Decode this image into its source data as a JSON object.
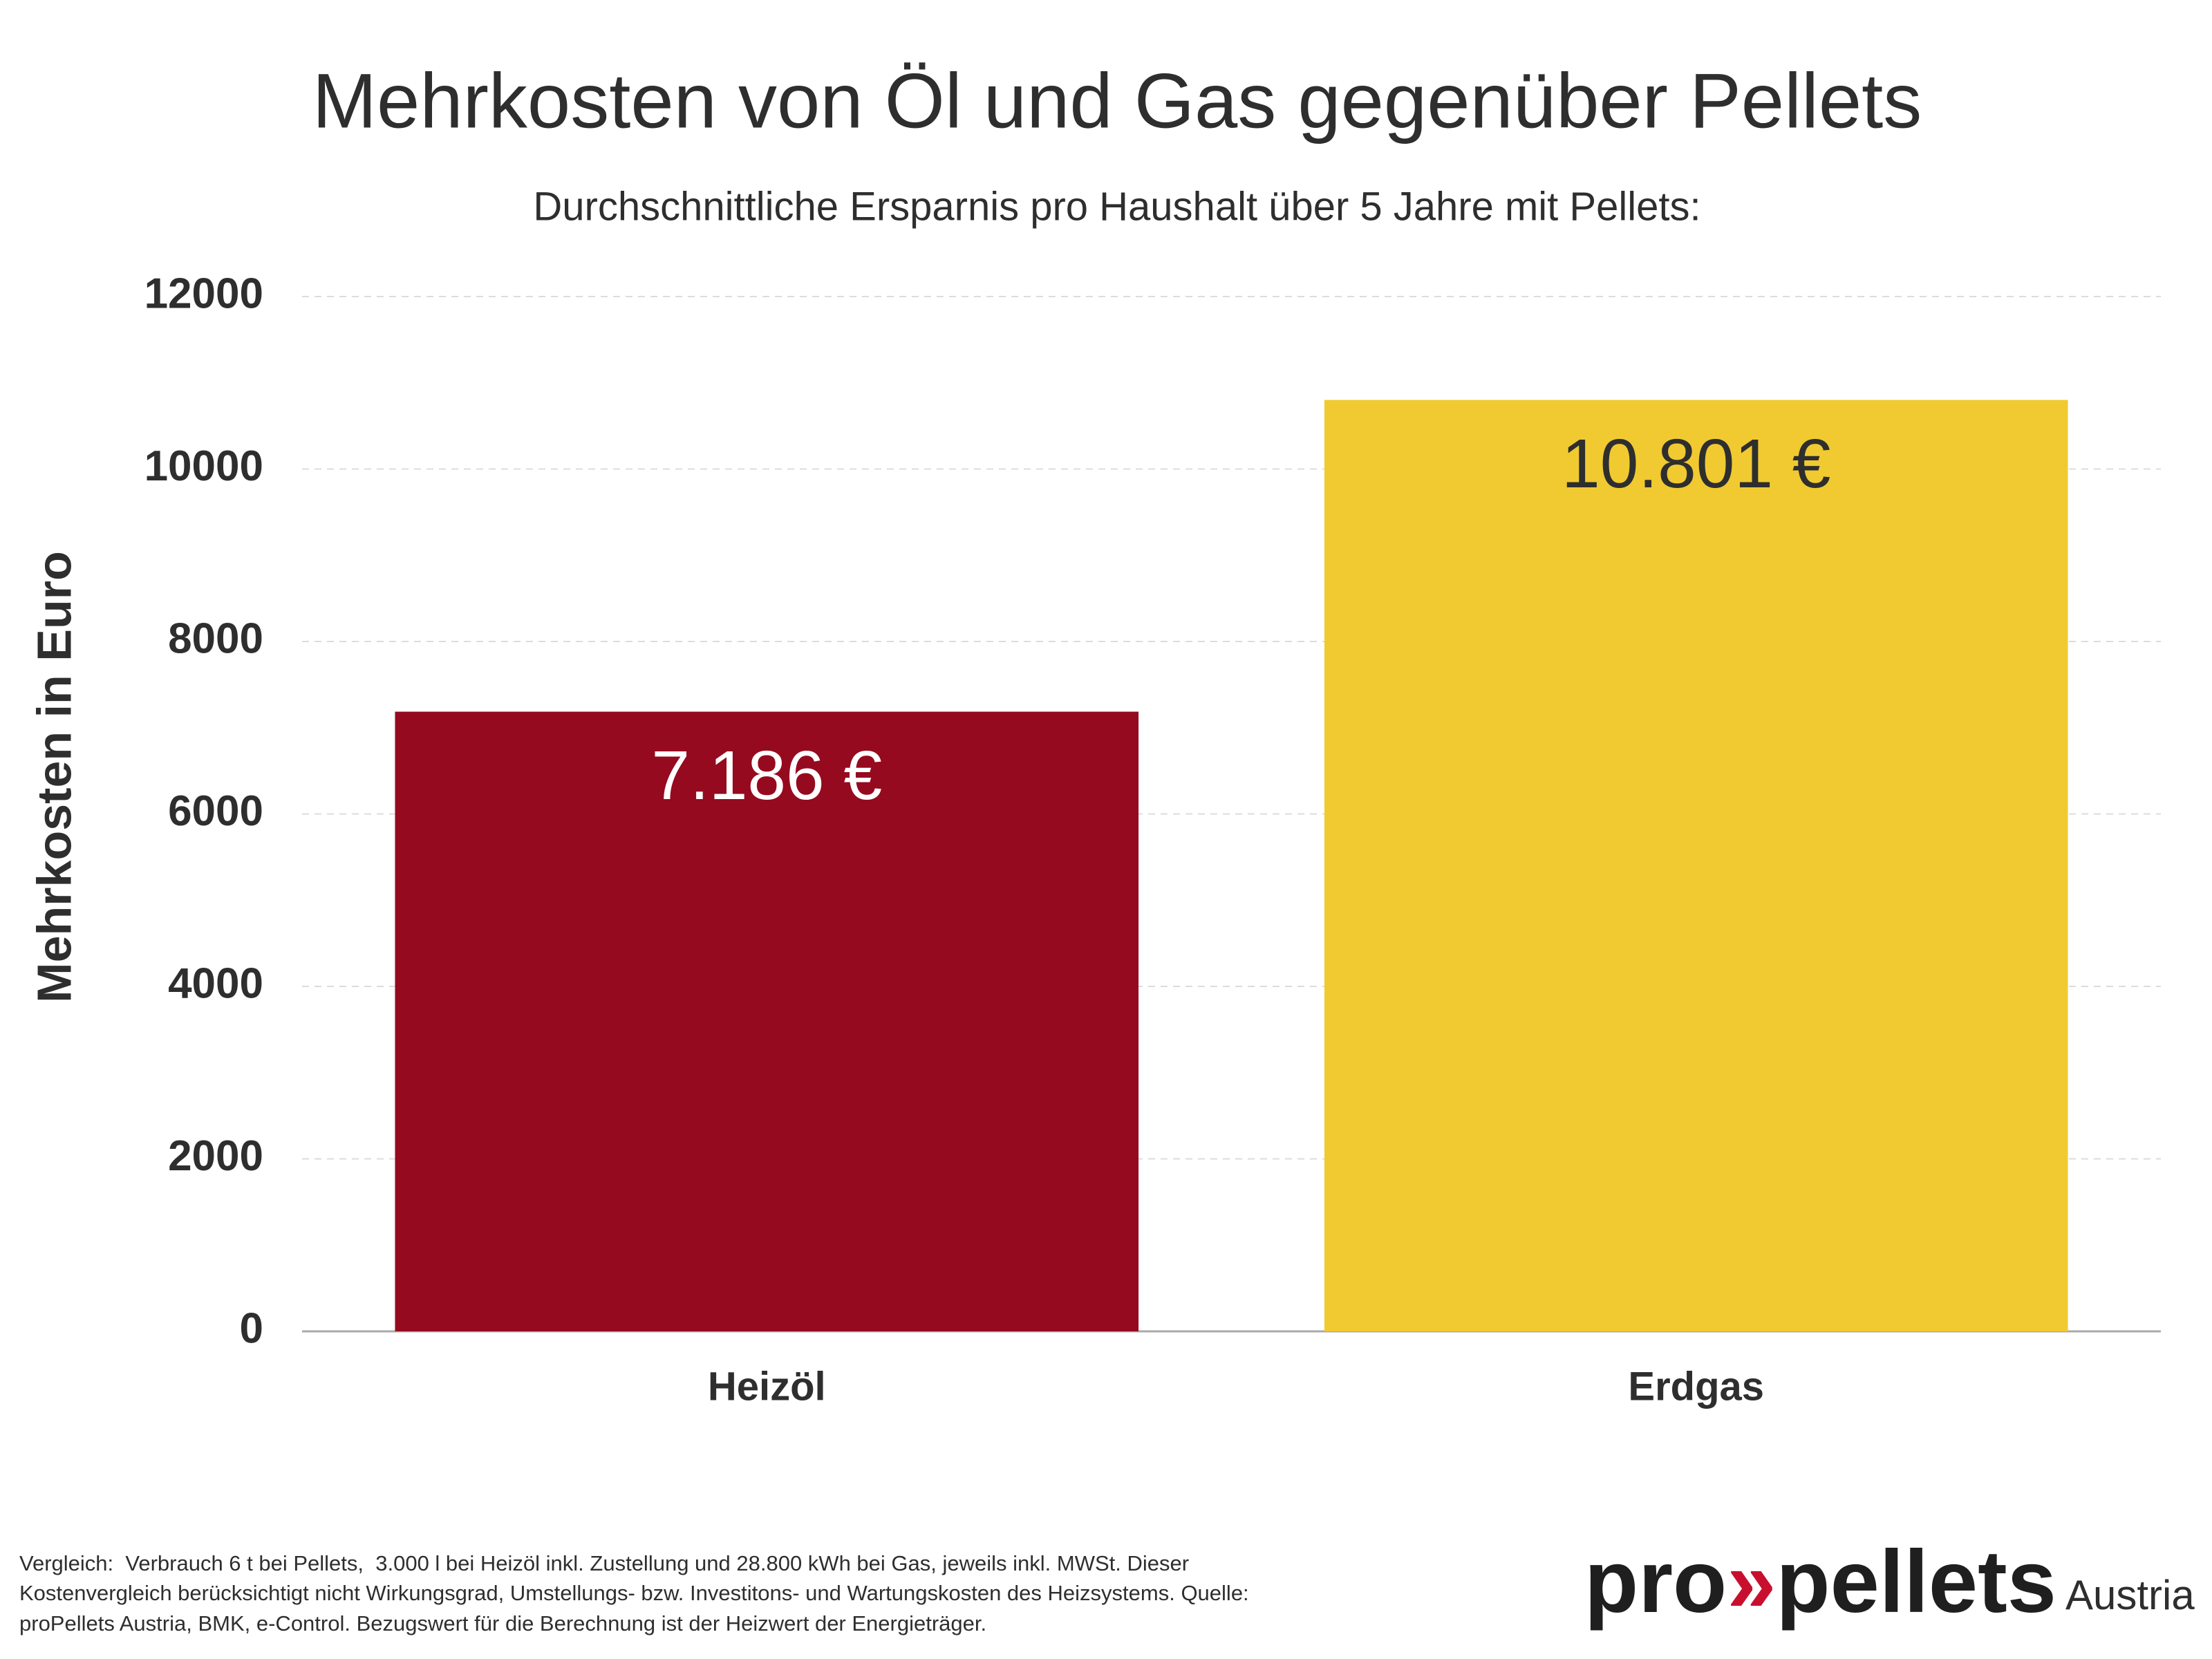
{
  "chart_data": {
    "type": "bar",
    "title": "Mehrkosten von Öl und Gas gegenüber Pellets",
    "subtitle": "Durchschnittliche Ersparnis pro Haushalt über 5 Jahre mit Pellets:",
    "y_label": "Mehrkosten in Euro",
    "categories": [
      "Heizöl",
      "Erdgas"
    ],
    "values": [
      7186,
      10801
    ],
    "value_labels": [
      "7.186 €",
      "10.801 €"
    ],
    "colors": [
      "#960a1f",
      "#f0ca30"
    ],
    "label_colors": [
      "#ffffff",
      "#2e2e2e"
    ],
    "ylim": [
      0,
      12000
    ],
    "yticks": [
      0,
      2000,
      4000,
      6000,
      8000,
      10000,
      12000
    ],
    "grid": true,
    "footnote": [
      "Vergleich:  Verbrauch 6 t bei Pellets,  3.000 l bei Heizöl inkl. Zustellung und 28.800 kWh bei Gas, jeweils inkl. MWSt. Dieser",
      "Kostenvergleich berücksichtigt nicht Wirkungsgrad, Umstellungs- bzw. Investitons- und Wartungskosten des Heizsystems. Quelle:",
      "proPellets Austria, BMK, e-Control. Bezugswert für die Berechnung ist der Heizwert der Energieträger."
    ]
  },
  "logo": {
    "parts": [
      "pro",
      "»",
      "pellets"
    ],
    "region": "Austria"
  }
}
